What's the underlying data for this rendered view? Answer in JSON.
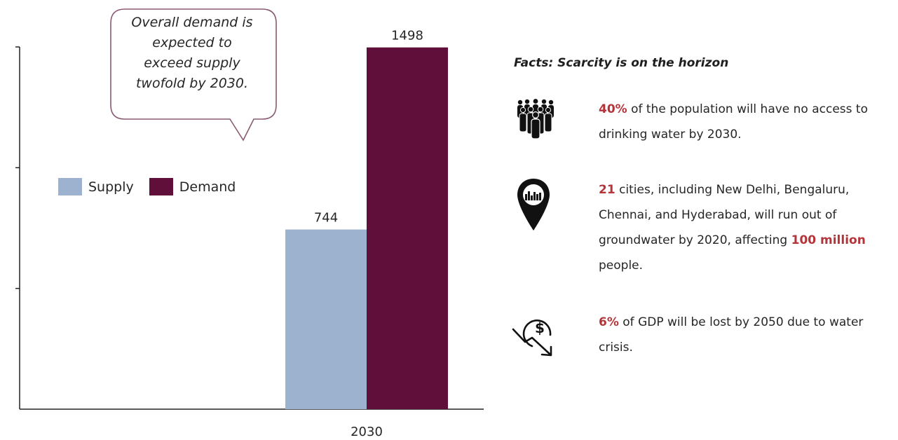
{
  "chart_data": {
    "type": "bar",
    "categories": [
      "2030"
    ],
    "series": [
      {
        "name": "Supply",
        "values": [
          744
        ]
      },
      {
        "name": "Demand",
        "values": [
          1498
        ]
      }
    ],
    "ylim": [
      0,
      1500
    ],
    "yticks_marks": 3,
    "legend_position": "left",
    "data_labels": [
      "744",
      "1498"
    ],
    "colors": {
      "Supply": "#9cb2cf",
      "Demand": "#5f0f3a"
    }
  },
  "callout": {
    "text": "Overall demand is\nexpected to\nexceed supply\ntwofold by 2030."
  },
  "legend": {
    "supply_label": "Supply",
    "demand_label": "Demand"
  },
  "facts": {
    "title": "Facts: Scarcity is on the horizon",
    "items": [
      {
        "icon": "people-crowd-icon",
        "highlight": "40%",
        "text": " of the population will have no access to drinking water by 2030."
      },
      {
        "icon": "city-location-pin-icon",
        "highlight": "21",
        "text_a": " cities, including New Delhi, Bengaluru, Chennai, and Hyderabad, will run out of groundwater by 2020, affecting ",
        "highlight_b": "100 million",
        "text_b": " people."
      },
      {
        "icon": "dollar-decline-icon",
        "highlight": "6%",
        "text": " of GDP will be lost by 2050 due to water crisis."
      }
    ],
    "highlight_color": "#b5343a"
  }
}
